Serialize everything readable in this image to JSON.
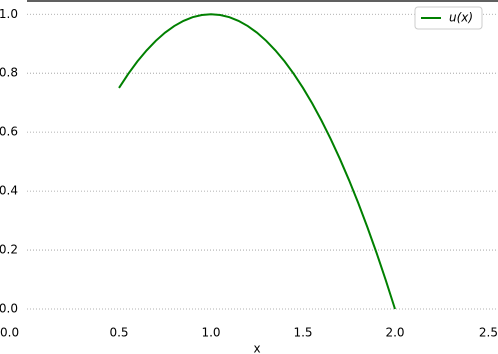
{
  "chart_data": {
    "type": "line",
    "xlabel": "x",
    "x": [
      0.5,
      0.55,
      0.6,
      0.65,
      0.7,
      0.75,
      0.8,
      0.85,
      0.9,
      0.95,
      1.0,
      1.05,
      1.1,
      1.15,
      1.2,
      1.25,
      1.3,
      1.35,
      1.4,
      1.45,
      1.5,
      1.55,
      1.6,
      1.65,
      1.7,
      1.75,
      1.8,
      1.85,
      1.9,
      1.95,
      2.0
    ],
    "series": [
      {
        "name": "u(x)",
        "color": "#008000",
        "values": [
          0.75,
          0.7975,
          0.84,
          0.8775,
          0.91,
          0.9375,
          0.96,
          0.9775,
          0.99,
          0.9975,
          1.0,
          0.9975,
          0.99,
          0.9775,
          0.96,
          0.9375,
          0.91,
          0.8775,
          0.84,
          0.7975,
          0.75,
          0.6975,
          0.64,
          0.5775,
          0.51,
          0.4375,
          0.36,
          0.2775,
          0.19,
          0.0975,
          0.0
        ]
      }
    ],
    "xlim": [
      0,
      2.5
    ],
    "ylim": [
      0,
      1.045
    ],
    "xticks": [
      {
        "value": 0,
        "label": "0.0"
      },
      {
        "value": 0.5,
        "label": "0.5"
      },
      {
        "value": 1,
        "label": "1.0"
      },
      {
        "value": 1.5,
        "label": "1.5"
      },
      {
        "value": 2,
        "label": "2.0"
      },
      {
        "value": 2.5,
        "label": "2.5"
      }
    ],
    "yticks": [
      {
        "value": 0,
        "label": "0.0"
      },
      {
        "value": 0.2,
        "label": "0.2"
      },
      {
        "value": 0.4,
        "label": "0.4"
      },
      {
        "value": 0.6,
        "label": "0.6"
      },
      {
        "value": 0.8,
        "label": "0.8"
      },
      {
        "value": 1,
        "label": "1.0"
      }
    ],
    "grid": true,
    "legend": "upper right"
  }
}
